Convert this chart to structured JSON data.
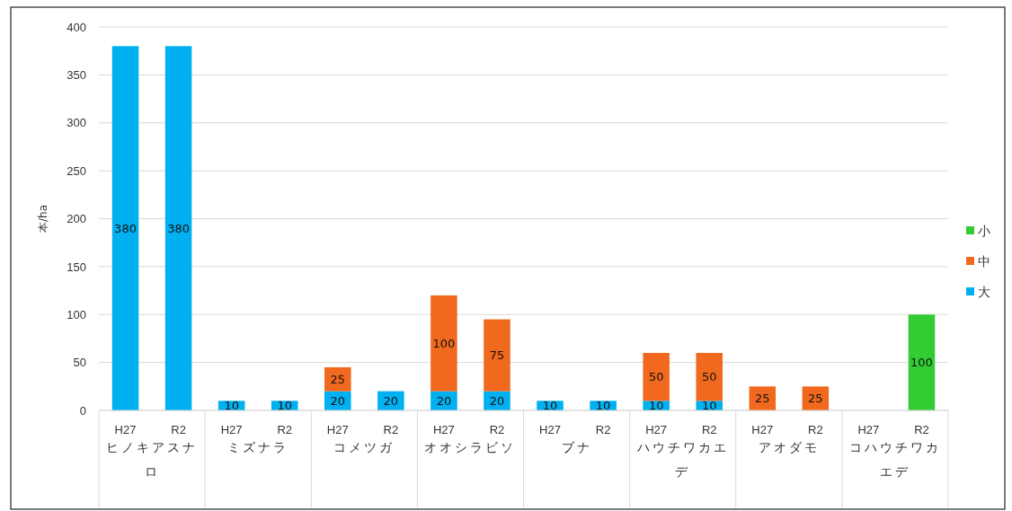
{
  "chart_data": {
    "type": "bar",
    "stacked": true,
    "ylabel": "本/ha",
    "categories": [
      "H27",
      "R2",
      "H27",
      "R2",
      "H27",
      "R2",
      "H27",
      "R2",
      "H27",
      "R2",
      "H27",
      "R2",
      "H27",
      "R2",
      "H27",
      "R2"
    ],
    "annotations": [
      "ヒノキアスナロ",
      "ミズナラ",
      "コメツガ",
      "オオシラビソ",
      "ブナ",
      "ハウチワカエデ",
      "アオダモ",
      "コハウチワカエデ"
    ],
    "series": [
      {
        "name": "大",
        "color": "#00b0f0",
        "values": [
          380,
          380,
          10,
          10,
          20,
          20,
          20,
          20,
          10,
          10,
          10,
          10,
          null,
          null,
          null,
          null
        ]
      },
      {
        "name": "中",
        "color": "#f0691e",
        "values": [
          null,
          null,
          null,
          null,
          25,
          null,
          100,
          75,
          null,
          null,
          50,
          50,
          25,
          25,
          null,
          null
        ]
      },
      {
        "name": "小",
        "color": "#33cc33",
        "values": [
          null,
          null,
          null,
          null,
          null,
          null,
          null,
          null,
          null,
          null,
          null,
          null,
          null,
          null,
          null,
          100
        ]
      }
    ],
    "ylim": [
      0,
      400
    ],
    "yticks": [
      0,
      50,
      100,
      150,
      200,
      250,
      300,
      350,
      400
    ],
    "grid": "y",
    "legend": "right",
    "data_labels": true
  }
}
